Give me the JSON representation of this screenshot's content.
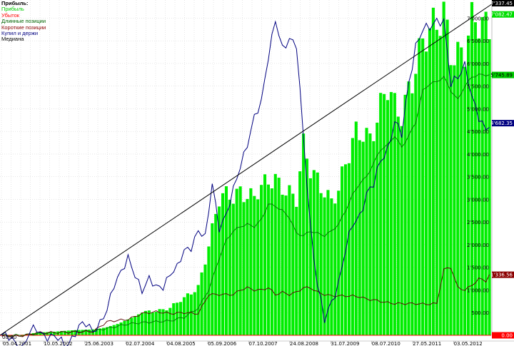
{
  "legend": {
    "title": "Прибыль:",
    "items": [
      {
        "label": "Прибыль",
        "color": "#00cc00"
      },
      {
        "label": "Убыток",
        "color": "#ff0000"
      },
      {
        "label": "Длинные позиции",
        "color": "#006400"
      },
      {
        "label": "Короткие позиции",
        "color": "#8b0000"
      },
      {
        "label": "Купил и держи",
        "color": "#000080"
      },
      {
        "label": "Медиана",
        "color": "#000000"
      }
    ]
  },
  "chart_data": {
    "type": "bar",
    "title": "",
    "xlabel": "",
    "ylabel": "",
    "ylim": [
      0,
      7337.45
    ],
    "x_tick_labels": [
      "05.04.2001",
      "10.05.2002",
      "25.06.2003",
      "02.07.2004",
      "04.08.2005",
      "05.09.2006",
      "07.10.2007",
      "24.08.2008",
      "31.07.2009",
      "08.07.2010",
      "27.05.2011",
      "03.05.2012"
    ],
    "x_extra_label": "00:00",
    "y_ticks": [
      500,
      1000,
      1500,
      2000,
      2500,
      3000,
      3500,
      4000,
      4500,
      5000,
      5500,
      6000,
      6500,
      7000
    ],
    "y_tick_labels": [
      "500.00",
      "1'000.00",
      "1'500.00",
      "2'000.00",
      "2'500.00",
      "3'000.00",
      "3'500.00",
      "4'000.00",
      "4'500.00",
      "5'000.00",
      "5'500.00",
      "6'000.00",
      "6'500.00",
      "7'000.00"
    ],
    "value_labels": [
      {
        "text": "7'337.45",
        "value": 7337.45,
        "bg": "#000000",
        "fg": "#ffffff"
      },
      {
        "text": "7'082.47",
        "value": 7082.47,
        "bg": "#00dd00",
        "fg": "#ffffff"
      },
      {
        "text": "5'745.89",
        "value": 5745.89,
        "bg": "#00cc00",
        "fg": "#000000"
      },
      {
        "text": "4'682.35",
        "value": 4682.35,
        "bg": "#000080",
        "fg": "#ffffff"
      },
      {
        "text": "1'336.56",
        "value": 1336.56,
        "bg": "#8b0000",
        "fg": "#ffffff"
      },
      {
        "text": "0.00",
        "value": 0,
        "bg": "#ff0000",
        "fg": "#ffffff"
      }
    ],
    "n_points": 140,
    "series": [
      {
        "name": "Прибыль",
        "kind": "bar",
        "color": "#00ee00",
        "keys": [
          [
            0,
            0
          ],
          [
            5,
            0
          ],
          [
            10,
            60
          ],
          [
            15,
            80
          ],
          [
            20,
            110
          ],
          [
            26,
            130
          ],
          [
            28,
            150
          ],
          [
            30,
            180
          ],
          [
            33,
            250
          ],
          [
            36,
            350
          ],
          [
            40,
            500
          ],
          [
            44,
            560
          ],
          [
            48,
            600
          ],
          [
            52,
            800
          ],
          [
            56,
            1100
          ],
          [
            59,
            2000
          ],
          [
            62,
            2900
          ],
          [
            64,
            3050
          ],
          [
            66,
            3100
          ],
          [
            68,
            3300
          ],
          [
            70,
            3150
          ],
          [
            72,
            3000
          ],
          [
            75,
            3250
          ],
          [
            78,
            3500
          ],
          [
            80,
            3400
          ],
          [
            82,
            3200
          ],
          [
            84,
            2950
          ],
          [
            86,
            4050
          ],
          [
            88,
            3600
          ],
          [
            90,
            3500
          ],
          [
            92,
            3300
          ],
          [
            94,
            3000
          ],
          [
            96,
            3150
          ],
          [
            99,
            3900
          ],
          [
            101,
            4500
          ],
          [
            103,
            4650
          ],
          [
            105,
            4450
          ],
          [
            107,
            4750
          ],
          [
            110,
            5300
          ],
          [
            112,
            5000
          ],
          [
            114,
            5000
          ],
          [
            116,
            5600
          ],
          [
            118,
            6000
          ],
          [
            120,
            6300
          ],
          [
            122,
            6500
          ],
          [
            124,
            6800
          ],
          [
            126,
            7337
          ],
          [
            128,
            6500
          ],
          [
            130,
            6200
          ],
          [
            132,
            6100
          ],
          [
            134,
            6700
          ],
          [
            136,
            6900
          ],
          [
            138,
            7000
          ],
          [
            139,
            7082
          ]
        ]
      },
      {
        "name": "Длинные позиции",
        "kind": "line",
        "color": "#007000",
        "keys": [
          [
            0,
            0
          ],
          [
            5,
            0
          ],
          [
            10,
            30
          ],
          [
            15,
            60
          ],
          [
            20,
            80
          ],
          [
            26,
            100
          ],
          [
            30,
            150
          ],
          [
            33,
            200
          ],
          [
            36,
            250
          ],
          [
            40,
            280
          ],
          [
            44,
            300
          ],
          [
            48,
            320
          ],
          [
            52,
            400
          ],
          [
            56,
            600
          ],
          [
            59,
            1000
          ],
          [
            62,
            1700
          ],
          [
            64,
            2100
          ],
          [
            66,
            2300
          ],
          [
            68,
            2400
          ],
          [
            70,
            2450
          ],
          [
            72,
            2400
          ],
          [
            74,
            2550
          ],
          [
            76,
            2900
          ],
          [
            78,
            2850
          ],
          [
            80,
            2750
          ],
          [
            82,
            2600
          ],
          [
            84,
            2250
          ],
          [
            86,
            2200
          ],
          [
            88,
            2300
          ],
          [
            90,
            2250
          ],
          [
            92,
            2200
          ],
          [
            94,
            2300
          ],
          [
            96,
            2450
          ],
          [
            98,
            2750
          ],
          [
            100,
            3100
          ],
          [
            102,
            3350
          ],
          [
            104,
            3500
          ],
          [
            106,
            3800
          ],
          [
            108,
            4100
          ],
          [
            110,
            4200
          ],
          [
            112,
            4400
          ],
          [
            114,
            4150
          ],
          [
            116,
            4400
          ],
          [
            118,
            4700
          ],
          [
            120,
            5400
          ],
          [
            122,
            5550
          ],
          [
            124,
            5600
          ],
          [
            126,
            5700
          ],
          [
            128,
            5400
          ],
          [
            130,
            5200
          ],
          [
            132,
            5500
          ],
          [
            134,
            5700
          ],
          [
            136,
            5750
          ],
          [
            139,
            5746
          ]
        ]
      },
      {
        "name": "Короткие позиции",
        "kind": "line",
        "color": "#5a0000",
        "keys": [
          [
            0,
            -20
          ],
          [
            5,
            -20
          ],
          [
            8,
            20
          ],
          [
            10,
            60
          ],
          [
            15,
            60
          ],
          [
            20,
            70
          ],
          [
            26,
            80
          ],
          [
            30,
            300
          ],
          [
            33,
            330
          ],
          [
            36,
            350
          ],
          [
            40,
            480
          ],
          [
            44,
            520
          ],
          [
            48,
            480
          ],
          [
            52,
            500
          ],
          [
            56,
            480
          ],
          [
            59,
            900
          ],
          [
            62,
            900
          ],
          [
            64,
            900
          ],
          [
            66,
            900
          ],
          [
            68,
            1000
          ],
          [
            70,
            1050
          ],
          [
            72,
            1000
          ],
          [
            74,
            1000
          ],
          [
            76,
            1050
          ],
          [
            78,
            900
          ],
          [
            80,
            950
          ],
          [
            82,
            900
          ],
          [
            84,
            950
          ],
          [
            86,
            1050
          ],
          [
            88,
            1050
          ],
          [
            90,
            950
          ],
          [
            92,
            900
          ],
          [
            94,
            870
          ],
          [
            96,
            870
          ],
          [
            98,
            870
          ],
          [
            100,
            870
          ],
          [
            102,
            850
          ],
          [
            104,
            800
          ],
          [
            106,
            780
          ],
          [
            108,
            750
          ],
          [
            110,
            720
          ],
          [
            112,
            700
          ],
          [
            114,
            700
          ],
          [
            116,
            700
          ],
          [
            118,
            700
          ],
          [
            120,
            690
          ],
          [
            122,
            690
          ],
          [
            124,
            700
          ],
          [
            126,
            1450
          ],
          [
            128,
            1500
          ],
          [
            130,
            1050
          ],
          [
            132,
            1000
          ],
          [
            134,
            1100
          ],
          [
            136,
            1250
          ],
          [
            138,
            1200
          ],
          [
            139,
            1337
          ]
        ]
      },
      {
        "name": "Купил и держи",
        "kind": "line",
        "color": "#000080",
        "keys": [
          [
            0,
            0
          ],
          [
            3,
            -120
          ],
          [
            6,
            -240
          ],
          [
            8,
            50
          ],
          [
            10,
            120
          ],
          [
            13,
            0
          ],
          [
            16,
            -100
          ],
          [
            18,
            -200
          ],
          [
            20,
            -50
          ],
          [
            22,
            150
          ],
          [
            24,
            250
          ],
          [
            26,
            150
          ],
          [
            28,
            250
          ],
          [
            30,
            500
          ],
          [
            32,
            1150
          ],
          [
            34,
            1450
          ],
          [
            36,
            1650
          ],
          [
            38,
            1300
          ],
          [
            40,
            1050
          ],
          [
            42,
            1250
          ],
          [
            44,
            1000
          ],
          [
            46,
            1100
          ],
          [
            48,
            1400
          ],
          [
            50,
            1450
          ],
          [
            52,
            1850
          ],
          [
            54,
            2000
          ],
          [
            56,
            2300
          ],
          [
            58,
            2100
          ],
          [
            60,
            3400
          ],
          [
            62,
            2400
          ],
          [
            64,
            2600
          ],
          [
            66,
            3200
          ],
          [
            68,
            3800
          ],
          [
            70,
            4200
          ],
          [
            72,
            4750
          ],
          [
            74,
            5200
          ],
          [
            76,
            6200
          ],
          [
            78,
            6900
          ],
          [
            80,
            6300
          ],
          [
            82,
            6600
          ],
          [
            84,
            6400
          ],
          [
            86,
            4300
          ],
          [
            88,
            2400
          ],
          [
            90,
            1150
          ],
          [
            92,
            300
          ],
          [
            94,
            700
          ],
          [
            96,
            1200
          ],
          [
            98,
            1900
          ],
          [
            100,
            2400
          ],
          [
            102,
            2650
          ],
          [
            104,
            3150
          ],
          [
            106,
            3300
          ],
          [
            108,
            3850
          ],
          [
            110,
            4150
          ],
          [
            112,
            4700
          ],
          [
            114,
            4400
          ],
          [
            116,
            5600
          ],
          [
            118,
            6400
          ],
          [
            120,
            6700
          ],
          [
            122,
            6800
          ],
          [
            124,
            7000
          ],
          [
            126,
            6900
          ],
          [
            128,
            5500
          ],
          [
            130,
            5750
          ],
          [
            132,
            6000
          ],
          [
            134,
            5200
          ],
          [
            136,
            4800
          ],
          [
            138,
            4600
          ],
          [
            139,
            4682
          ]
        ]
      }
    ],
    "median_line": {
      "name": "Медиана",
      "color": "#000000",
      "start": {
        "index": 0,
        "value": 0
      },
      "end": {
        "index": 139,
        "value": 7337.45
      }
    }
  }
}
